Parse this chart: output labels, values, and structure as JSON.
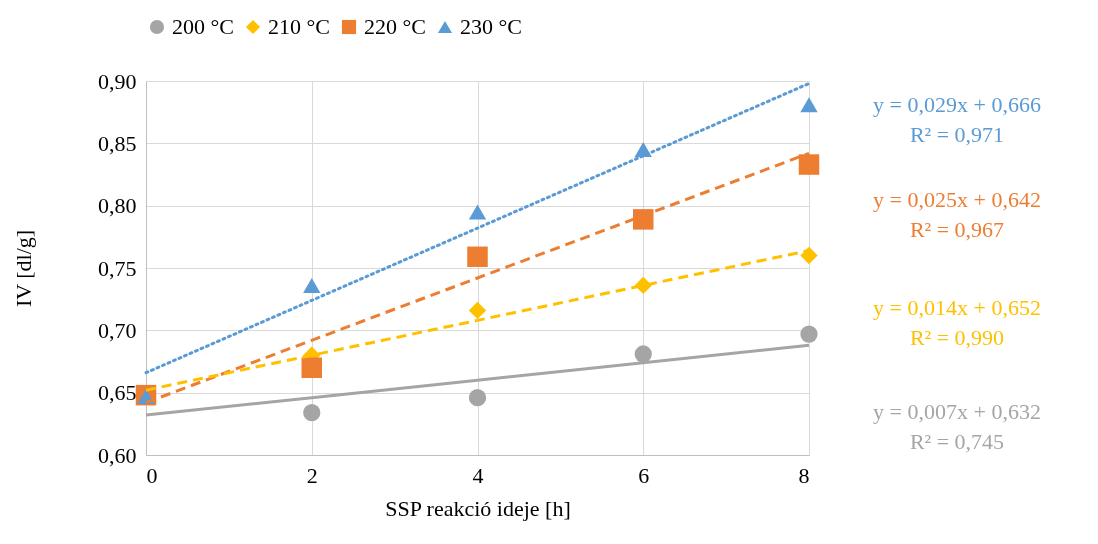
{
  "chart_data": {
    "type": "scatter",
    "xlabel": "SSP reakció ideje [h]",
    "ylabel": "IV [dl/g]",
    "xlim": [
      0,
      8
    ],
    "xticks": [
      0,
      2,
      4,
      6,
      8
    ],
    "ylim": [
      0.6,
      0.9
    ],
    "yticks": [
      {
        "value": 0.6,
        "label": "0,60"
      },
      {
        "value": 0.65,
        "label": "0,65"
      },
      {
        "value": 0.7,
        "label": "0,70"
      },
      {
        "value": 0.75,
        "label": "0,75"
      },
      {
        "value": 0.8,
        "label": "0,80"
      },
      {
        "value": 0.85,
        "label": "0,85"
      },
      {
        "value": 0.9,
        "label": "0,90"
      }
    ],
    "grid": true,
    "legend": "top",
    "x": [
      0,
      2,
      4,
      6,
      8
    ],
    "series": [
      {
        "name": "200 °C",
        "marker": "circle",
        "color": "#a5a5a5",
        "values": [
          null,
          0.634,
          0.646,
          0.681,
          0.697
        ]
      },
      {
        "name": "210 °C",
        "marker": "diamond",
        "color": "#ffc000",
        "values": [
          null,
          0.68,
          0.716,
          0.736,
          0.76
        ]
      },
      {
        "name": "220 °C",
        "marker": "square",
        "color": "#ed7d31",
        "values": [
          0.648,
          0.67,
          0.759,
          0.789,
          0.833
        ]
      },
      {
        "name": "230 °C",
        "marker": "triangle",
        "color": "#5b9bd5",
        "values": [
          0.647,
          0.736,
          0.795,
          0.845,
          0.881
        ]
      },
      {
        "type": "line",
        "marker": "none",
        "line_style": "dotted",
        "color": "#5b9bd5",
        "values": [
          0.666,
          0.724,
          0.782,
          0.84,
          0.898
        ]
      },
      {
        "type": "line",
        "marker": "none",
        "line_style": "dashed",
        "color": "#ed7d31",
        "values": [
          0.642,
          0.692,
          0.742,
          0.792,
          0.842
        ]
      },
      {
        "type": "line",
        "marker": "none",
        "line_style": "dashed",
        "color": "#ffc000",
        "values": [
          0.652,
          0.68,
          0.708,
          0.736,
          0.764
        ]
      },
      {
        "type": "line",
        "marker": "none",
        "line_style": "solid",
        "color": "#a5a5a5",
        "values": [
          0.632,
          0.646,
          0.66,
          0.674,
          0.688
        ]
      }
    ],
    "annotations": [
      "y = 0,029x + 0,666\nR² = 0,971",
      "y = 0,025x + 0,642\nR² = 0,967",
      "y = 0,014x + 0,652\nR² = 0,990",
      "y = 0,007x + 0,632\nR² = 0,745"
    ]
  }
}
